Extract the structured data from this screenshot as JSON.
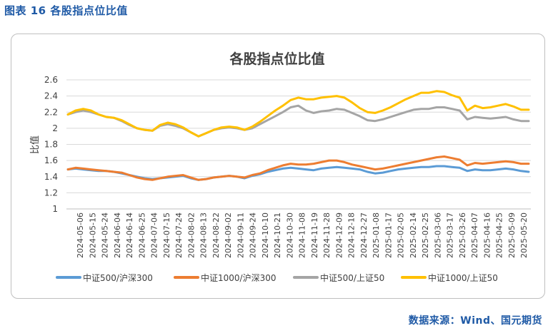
{
  "figure_label": "图表 16 各股指点位比值",
  "source_note": "数据来源：Wind、国元期货",
  "chart_data": {
    "type": "line",
    "title": "各股指点位比值",
    "ylabel": "比值",
    "xlabel": "",
    "ylim": [
      1,
      2.6
    ],
    "yticks": [
      "1",
      "1.2",
      "1.4",
      "1.6",
      "1.8",
      "2",
      "2.2",
      "2.4",
      "2.6"
    ],
    "xticks": [
      "2024-05-06",
      "2024-05-15",
      "2024-05-24",
      "2024-06-04",
      "2024-06-14",
      "2024-06-25",
      "2024-07-04",
      "2024-07-15",
      "2024-07-24",
      "2024-08-02",
      "2024-08-13",
      "2024-08-22",
      "2024-09-02",
      "2024-09-11",
      "2024-09-24",
      "2024-10-10",
      "2024-10-21",
      "2024-10-30",
      "2024-11-08",
      "2024-11-19",
      "2024-11-28",
      "2024-12-09",
      "2024-12-18",
      "2024-12-27",
      "2025-01-08",
      "2025-01-17",
      "2025-02-05",
      "2025-02-14",
      "2025-02-25",
      "2025-03-06",
      "2025-03-17",
      "2025-03-26",
      "2025-04-07",
      "2025-04-16",
      "2025-04-25",
      "2025-05-09",
      "2025-05-20"
    ],
    "grid": "horizontal",
    "legend_position": "bottom",
    "series": [
      {
        "name": "中证500/沪深300",
        "color": "#5b9bd5",
        "values": [
          1.49,
          1.5,
          1.49,
          1.48,
          1.47,
          1.47,
          1.46,
          1.44,
          1.42,
          1.4,
          1.38,
          1.37,
          1.38,
          1.39,
          1.4,
          1.41,
          1.38,
          1.36,
          1.37,
          1.39,
          1.4,
          1.41,
          1.4,
          1.38,
          1.41,
          1.43,
          1.46,
          1.48,
          1.5,
          1.51,
          1.5,
          1.49,
          1.48,
          1.5,
          1.51,
          1.52,
          1.51,
          1.5,
          1.49,
          1.46,
          1.44,
          1.45,
          1.47,
          1.49,
          1.5,
          1.51,
          1.52,
          1.52,
          1.53,
          1.53,
          1.52,
          1.51,
          1.47,
          1.49,
          1.48,
          1.48,
          1.49,
          1.5,
          1.49,
          1.47,
          1.46
        ]
      },
      {
        "name": "中证1000/沪深300",
        "color": "#ed7d31",
        "values": [
          1.49,
          1.51,
          1.5,
          1.49,
          1.48,
          1.47,
          1.46,
          1.45,
          1.42,
          1.39,
          1.37,
          1.36,
          1.38,
          1.4,
          1.41,
          1.42,
          1.39,
          1.36,
          1.37,
          1.39,
          1.4,
          1.41,
          1.4,
          1.39,
          1.42,
          1.44,
          1.48,
          1.51,
          1.54,
          1.56,
          1.55,
          1.55,
          1.56,
          1.58,
          1.6,
          1.6,
          1.58,
          1.55,
          1.53,
          1.51,
          1.49,
          1.5,
          1.52,
          1.54,
          1.56,
          1.58,
          1.6,
          1.62,
          1.64,
          1.65,
          1.63,
          1.61,
          1.54,
          1.57,
          1.56,
          1.57,
          1.58,
          1.59,
          1.58,
          1.56,
          1.56
        ]
      },
      {
        "name": "中证500/上证50",
        "color": "#a5a5a5",
        "values": [
          2.17,
          2.2,
          2.22,
          2.2,
          2.17,
          2.14,
          2.13,
          2.09,
          2.04,
          2.0,
          1.98,
          1.97,
          2.03,
          2.05,
          2.03,
          2.0,
          1.95,
          1.9,
          1.94,
          1.98,
          2.0,
          2.01,
          2.0,
          1.98,
          2.0,
          2.05,
          2.1,
          2.15,
          2.2,
          2.26,
          2.28,
          2.22,
          2.19,
          2.21,
          2.22,
          2.24,
          2.23,
          2.19,
          2.15,
          2.1,
          2.09,
          2.11,
          2.14,
          2.17,
          2.2,
          2.23,
          2.24,
          2.24,
          2.26,
          2.26,
          2.24,
          2.22,
          2.11,
          2.14,
          2.13,
          2.12,
          2.13,
          2.14,
          2.11,
          2.09,
          2.09
        ]
      },
      {
        "name": "中证1000/上证50",
        "color": "#ffc000",
        "values": [
          2.17,
          2.22,
          2.24,
          2.22,
          2.17,
          2.14,
          2.13,
          2.1,
          2.05,
          2.0,
          1.98,
          1.97,
          2.04,
          2.07,
          2.05,
          2.01,
          1.95,
          1.9,
          1.94,
          1.98,
          2.01,
          2.02,
          2.01,
          1.98,
          2.02,
          2.08,
          2.15,
          2.22,
          2.28,
          2.35,
          2.38,
          2.36,
          2.36,
          2.38,
          2.39,
          2.4,
          2.38,
          2.32,
          2.25,
          2.2,
          2.19,
          2.22,
          2.26,
          2.31,
          2.36,
          2.4,
          2.44,
          2.44,
          2.46,
          2.45,
          2.41,
          2.38,
          2.22,
          2.28,
          2.25,
          2.26,
          2.28,
          2.3,
          2.27,
          2.23,
          2.23
        ]
      }
    ]
  }
}
